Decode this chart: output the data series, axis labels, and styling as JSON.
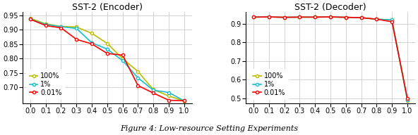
{
  "encoder_title": "SST-2 (Encoder)",
  "decoder_title": "SST-2 (Decoder)",
  "caption": "Figure 4: Low-resource Setting Experiments",
  "x": [
    0.0,
    0.1,
    0.2,
    0.3,
    0.4,
    0.5,
    0.6,
    0.7,
    0.8,
    0.9,
    1.0
  ],
  "encoder_100": [
    0.94,
    0.921,
    0.912,
    0.91,
    0.888,
    0.853,
    0.8,
    0.755,
    0.692,
    0.67,
    0.652
  ],
  "encoder_1": [
    0.937,
    0.919,
    0.911,
    0.905,
    0.855,
    0.833,
    0.793,
    0.733,
    0.69,
    0.682,
    0.653
  ],
  "encoder_001": [
    0.937,
    0.915,
    0.907,
    0.867,
    0.851,
    0.818,
    0.812,
    0.706,
    0.68,
    0.655,
    0.653
  ],
  "decoder_100": [
    0.935,
    0.936,
    0.934,
    0.935,
    0.935,
    0.936,
    0.934,
    0.932,
    0.924,
    0.92,
    0.49
  ],
  "decoder_1": [
    0.935,
    0.936,
    0.934,
    0.935,
    0.935,
    0.936,
    0.934,
    0.932,
    0.924,
    0.92,
    0.492
  ],
  "decoder_001": [
    0.935,
    0.936,
    0.934,
    0.935,
    0.935,
    0.936,
    0.934,
    0.932,
    0.924,
    0.91,
    0.5
  ],
  "color_100": "#bcbc00",
  "color_1": "#17becf",
  "color_001": "#ff0000",
  "marker": "o",
  "markersize": 3,
  "linewidth": 1.2,
  "encoder_ylim": [
    0.645,
    0.962
  ],
  "decoder_ylim": [
    0.475,
    0.962
  ],
  "encoder_yticks": [
    0.7,
    0.75,
    0.8,
    0.85,
    0.9,
    0.95
  ],
  "decoder_yticks": [
    0.5,
    0.6,
    0.7,
    0.8,
    0.9
  ],
  "xticks": [
    0.0,
    0.1,
    0.2,
    0.3,
    0.4,
    0.5,
    0.6,
    0.7,
    0.8,
    0.9,
    1.0
  ],
  "tick_fontsize": 7,
  "title_fontsize": 9,
  "legend_fontsize": 7
}
